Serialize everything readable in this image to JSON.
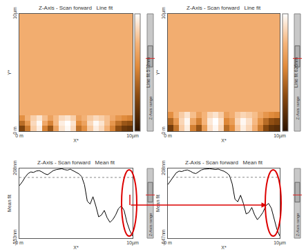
{
  "chart_data": [
    {
      "type": "heatmap",
      "title": "Z-Axis - Scan forward   Line fit",
      "x": [
        0,
        0.5,
        1,
        1.5,
        2,
        2.5,
        3,
        3.5,
        4,
        4.5,
        5,
        5.5,
        6,
        6.5,
        7,
        7.5,
        8,
        8.5,
        9,
        9.5,
        10
      ],
      "y": [
        0,
        0.45,
        0.9,
        1.35,
        10
      ],
      "z": [
        [
          150,
          280,
          480,
          540,
          300,
          200,
          380,
          520,
          560,
          500,
          260,
          330,
          470,
          540,
          500,
          420,
          300,
          180,
          120,
          100
        ],
        [
          250,
          360,
          500,
          560,
          400,
          300,
          440,
          540,
          572,
          520,
          320,
          380,
          500,
          560,
          520,
          450,
          350,
          260,
          200,
          180
        ],
        [
          330,
          420,
          480,
          520,
          450,
          380,
          440,
          500,
          520,
          480,
          380,
          420,
          470,
          500,
          480,
          450,
          400,
          350,
          320,
          300
        ],
        [
          410,
          410,
          410,
          410,
          410,
          410,
          410,
          410,
          410,
          410,
          410,
          410,
          410,
          410,
          410,
          410,
          410,
          410,
          410,
          410
        ]
      ],
      "colorbar_title": "Line fit 572nm",
      "color_range": [
        0,
        572
      ],
      "xlim": [
        0,
        10
      ],
      "ylim": [
        0,
        10
      ],
      "xticks": [
        {
          "value": 0,
          "label": "0 m"
        },
        {
          "value": 10,
          "label": "10µm"
        }
      ],
      "yticks": [
        {
          "value": 0,
          "label": "0 m"
        },
        {
          "value": 10,
          "label": "10µm"
        }
      ],
      "x_label": "X*",
      "y_label": "Y*",
      "side_label": "Z-Axis range"
    },
    {
      "type": "heatmap",
      "title": "Z-Axis - Scan forward   Line fit",
      "x": [
        0,
        0.5,
        1,
        1.5,
        2,
        2.5,
        3,
        3.5,
        4,
        4.5,
        5,
        5.5,
        6,
        6.5,
        7,
        7.5,
        8,
        8.5,
        9,
        9.5,
        10
      ],
      "y": [
        0,
        0.55,
        1.1,
        1.65,
        10
      ],
      "z": [
        [
          140,
          290,
          520,
          590,
          320,
          210,
          400,
          560,
          610,
          540,
          270,
          350,
          510,
          590,
          540,
          450,
          310,
          180,
          110,
          90
        ],
        [
          260,
          390,
          540,
          610,
          430,
          320,
          470,
          580,
          626,
          560,
          340,
          400,
          540,
          610,
          560,
          480,
          370,
          270,
          200,
          170
        ],
        [
          360,
          460,
          520,
          570,
          490,
          410,
          470,
          540,
          570,
          520,
          410,
          450,
          510,
          540,
          520,
          490,
          430,
          380,
          350,
          330
        ],
        [
          450,
          450,
          450,
          450,
          450,
          450,
          450,
          450,
          450,
          450,
          450,
          450,
          450,
          450,
          450,
          450,
          450,
          450,
          450,
          450
        ]
      ],
      "colorbar_title": "Line fit 626nm",
      "color_range": [
        0,
        626
      ],
      "xlim": [
        0,
        10
      ],
      "ylim": [
        0,
        10
      ],
      "xticks": [
        {
          "value": 0,
          "label": "0 m"
        },
        {
          "value": 10,
          "label": "10µm"
        }
      ],
      "yticks": [
        {
          "value": 0,
          "label": "0 m"
        },
        {
          "value": 10,
          "label": "10µm"
        }
      ],
      "x_label": "X*",
      "y_label": "Y*",
      "side_label": "Z-Axis range"
    },
    {
      "type": "line",
      "title": "Z-Axis - Scan forward   Mean fit",
      "x": [
        0,
        0.25,
        0.5,
        0.75,
        1,
        1.25,
        1.5,
        1.75,
        2,
        2.25,
        2.5,
        2.75,
        3,
        3.25,
        3.5,
        3.75,
        4,
        4.25,
        4.5,
        4.75,
        5,
        5.25,
        5.5,
        5.75,
        6,
        6.25,
        6.5,
        6.75,
        7,
        7.25,
        7.5,
        7.75,
        8,
        8.25,
        8.5,
        8.75,
        9,
        9.25,
        9.5,
        9.75,
        10
      ],
      "values": [
        20,
        60,
        110,
        150,
        170,
        165,
        180,
        185,
        170,
        150,
        140,
        160,
        185,
        195,
        200,
        205,
        195,
        190,
        200,
        185,
        170,
        150,
        120,
        30,
        -150,
        -180,
        -100,
        -200,
        -320,
        -300,
        -250,
        -330,
        -380,
        -350,
        -300,
        -230,
        -200,
        -250,
        -380,
        -470,
        -530
      ],
      "color": "#000000",
      "dashed_line": 110,
      "xlim": [
        0,
        10
      ],
      "ylim": [
        -553,
        208
      ],
      "xticks": [
        {
          "value": 0,
          "label": "0 m"
        },
        {
          "value": 10,
          "label": "10µm"
        }
      ],
      "yticks": [
        {
          "value": -553,
          "label": "-553nm"
        },
        {
          "value": 208,
          "label": "208nm"
        }
      ],
      "x_label": "X*",
      "y_label": "Mean fit",
      "side_label": "Z-Axis range"
    },
    {
      "type": "line",
      "title": "Z-Axis - Scan forward   Mean fit",
      "x": [
        0,
        0.25,
        0.5,
        0.75,
        1,
        1.25,
        1.5,
        1.75,
        2,
        2.25,
        2.5,
        2.75,
        3,
        3.25,
        3.5,
        3.75,
        4,
        4.25,
        4.5,
        4.75,
        5,
        5.25,
        5.5,
        5.75,
        6,
        6.25,
        6.5,
        6.75,
        7,
        7.25,
        7.5,
        7.75,
        8,
        8.25,
        8.5,
        8.75,
        9,
        9.25,
        9.5,
        9.75,
        10
      ],
      "values": [
        10,
        55,
        110,
        155,
        175,
        170,
        185,
        190,
        175,
        155,
        145,
        165,
        190,
        200,
        205,
        205,
        200,
        195,
        200,
        190,
        175,
        155,
        125,
        20,
        -170,
        -200,
        -120,
        -220,
        -350,
        -330,
        -270,
        -360,
        -420,
        -380,
        -330,
        -250,
        -220,
        -280,
        -420,
        -540,
        -620
      ],
      "color": "#000000",
      "dashed_line": 100,
      "xlim": [
        0,
        10
      ],
      "ylim": [
        -647,
        208
      ],
      "xticks": [
        {
          "value": 0,
          "label": "0 m"
        },
        {
          "value": 10,
          "label": "10µm"
        }
      ],
      "yticks": [
        {
          "value": -647,
          "label": "-647nm"
        },
        {
          "value": 208,
          "label": "208nm"
        }
      ],
      "x_label": "X*",
      "y_label": "Mean fit",
      "side_label": "Z-Axis range"
    }
  ]
}
